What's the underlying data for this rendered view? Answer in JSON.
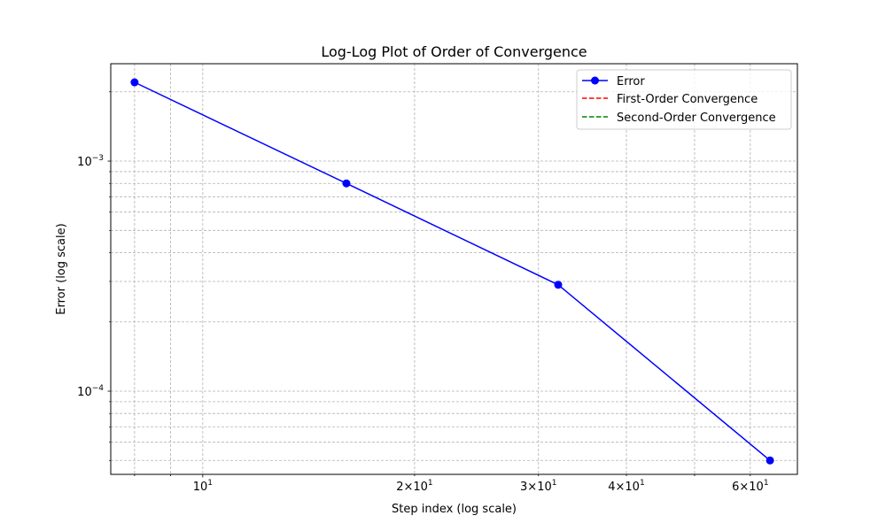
{
  "colors": {
    "error": "#0000ff",
    "first_order": "#ff0000",
    "second_order": "#008000",
    "grid": "#b0b0b0",
    "axis": "#000000"
  },
  "chart_data": {
    "type": "line",
    "title": "Log-Log Plot of Order of Convergence",
    "xlabel": "Step index (log scale)",
    "ylabel": "Error (log scale)",
    "xscale": "log",
    "yscale": "log",
    "xlim": [
      7.4,
      70
    ],
    "ylim": [
      4.35e-05,
      0.00265
    ],
    "grid": true,
    "legend_position": "top-right",
    "series": [
      {
        "name": "Error",
        "x": [
          8,
          16,
          32,
          64
        ],
        "y": [
          0.0022,
          0.0008,
          0.00029,
          5e-05
        ],
        "style": "solid",
        "marker": "circle"
      },
      {
        "name": "First-Order Convergence",
        "x": [],
        "y": [],
        "style": "dashed"
      },
      {
        "name": "Second-Order Convergence",
        "x": [],
        "y": [],
        "style": "dashed"
      }
    ],
    "x_major_ticks": [
      {
        "value": 10,
        "base": "10",
        "exp": "1"
      }
    ],
    "x_minor_ticks": [
      {
        "value": 8,
        "label": null
      },
      {
        "value": 9,
        "label": null
      },
      {
        "value": 20,
        "mant": "2",
        "base": "10",
        "exp": "1"
      },
      {
        "value": 30,
        "mant": "3",
        "base": "10",
        "exp": "1"
      },
      {
        "value": 40,
        "mant": "4",
        "base": "10",
        "exp": "1"
      },
      {
        "value": 50,
        "label": null
      },
      {
        "value": 60,
        "mant": "6",
        "base": "10",
        "exp": "1"
      }
    ],
    "y_major_ticks": [
      {
        "value": 0.001,
        "base": "10",
        "exp": "−3"
      },
      {
        "value": 0.0001,
        "base": "10",
        "exp": "−4"
      }
    ],
    "y_minor_ticks": [
      5e-05,
      6e-05,
      7e-05,
      8e-05,
      9e-05,
      0.0002,
      0.0003,
      0.0004,
      0.0005,
      0.0006,
      0.0007,
      0.0008,
      0.0009,
      0.002
    ]
  }
}
